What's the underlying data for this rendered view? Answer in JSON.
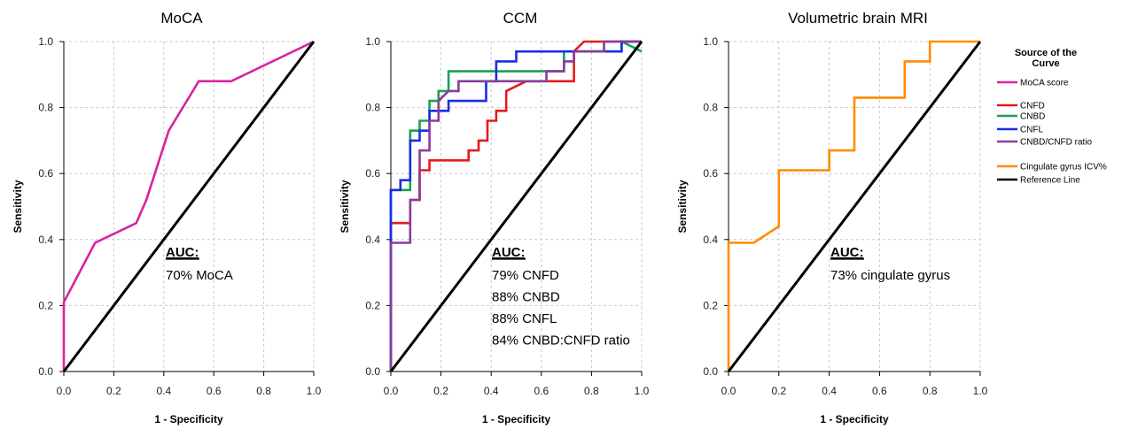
{
  "chart_data": [
    {
      "type": "line",
      "title": "MoCA",
      "xlabel": "1 - Specificity",
      "ylabel": "Sensitivity",
      "xlim": [
        0,
        1
      ],
      "ylim": [
        0,
        1
      ],
      "xticks": [
        "0.0",
        "0.2",
        "0.4",
        "0.6",
        "0.8",
        "1.0"
      ],
      "yticks": [
        "0.0",
        "0.2",
        "0.4",
        "0.6",
        "0.8",
        "1.0"
      ],
      "grid": true,
      "series": [
        {
          "name": "MoCA score",
          "color": "#d6249f",
          "points": [
            [
              0,
              0
            ],
            [
              0,
              0.21
            ],
            [
              0.125,
              0.39
            ],
            [
              0.29,
              0.45
            ],
            [
              0.33,
              0.52
            ],
            [
              0.42,
              0.73
            ],
            [
              0.54,
              0.88
            ],
            [
              0.67,
              0.88
            ],
            [
              1,
              1
            ]
          ]
        },
        {
          "name": "Reference Line",
          "color": "#000000",
          "points": [
            [
              0,
              0
            ],
            [
              1,
              1
            ]
          ]
        }
      ],
      "annotation": {
        "heading": "AUC:",
        "lines": [
          "70% MoCA"
        ]
      }
    },
    {
      "type": "line",
      "title": "CCM",
      "xlabel": "1 - Specificity",
      "ylabel": "Sensitivity",
      "xlim": [
        0,
        1
      ],
      "ylim": [
        0,
        1
      ],
      "xticks": [
        "0.0",
        "0.2",
        "0.4",
        "0.6",
        "0.8",
        "1.0"
      ],
      "yticks": [
        "0.0",
        "0.2",
        "0.4",
        "0.6",
        "0.8",
        "1.0"
      ],
      "grid": true,
      "series": [
        {
          "name": "CNFD",
          "color": "#e8191c",
          "points": [
            [
              0,
              0
            ],
            [
              0,
              0.45
            ],
            [
              0.077,
              0.45
            ],
            [
              0.077,
              0.52
            ],
            [
              0.115,
              0.52
            ],
            [
              0.115,
              0.61
            ],
            [
              0.154,
              0.61
            ],
            [
              0.154,
              0.64
            ],
            [
              0.31,
              0.64
            ],
            [
              0.31,
              0.67
            ],
            [
              0.35,
              0.67
            ],
            [
              0.35,
              0.7
            ],
            [
              0.385,
              0.7
            ],
            [
              0.385,
              0.76
            ],
            [
              0.42,
              0.76
            ],
            [
              0.42,
              0.79
            ],
            [
              0.46,
              0.79
            ],
            [
              0.46,
              0.85
            ],
            [
              0.54,
              0.88
            ],
            [
              0.73,
              0.88
            ],
            [
              0.73,
              0.97
            ],
            [
              0.77,
              1.0
            ],
            [
              1,
              1
            ]
          ]
        },
        {
          "name": "CNBD",
          "color": "#1aa052",
          "points": [
            [
              0,
              0
            ],
            [
              0,
              0.55
            ],
            [
              0.077,
              0.55
            ],
            [
              0.077,
              0.73
            ],
            [
              0.115,
              0.73
            ],
            [
              0.115,
              0.76
            ],
            [
              0.154,
              0.76
            ],
            [
              0.154,
              0.82
            ],
            [
              0.19,
              0.82
            ],
            [
              0.19,
              0.85
            ],
            [
              0.23,
              0.85
            ],
            [
              0.23,
              0.91
            ],
            [
              0.69,
              0.91
            ],
            [
              0.69,
              0.97
            ],
            [
              0.92,
              0.97
            ],
            [
              0.92,
              1.0
            ],
            [
              1,
              0.97
            ]
          ]
        },
        {
          "name": "CNFL",
          "color": "#1a2de6",
          "points": [
            [
              0,
              0
            ],
            [
              0,
              0.55
            ],
            [
              0.038,
              0.55
            ],
            [
              0.038,
              0.58
            ],
            [
              0.077,
              0.58
            ],
            [
              0.077,
              0.7
            ],
            [
              0.115,
              0.7
            ],
            [
              0.115,
              0.73
            ],
            [
              0.154,
              0.73
            ],
            [
              0.154,
              0.79
            ],
            [
              0.23,
              0.79
            ],
            [
              0.23,
              0.82
            ],
            [
              0.38,
              0.82
            ],
            [
              0.38,
              0.88
            ],
            [
              0.42,
              0.88
            ],
            [
              0.42,
              0.94
            ],
            [
              0.5,
              0.94
            ],
            [
              0.5,
              0.97
            ],
            [
              0.92,
              0.97
            ],
            [
              0.92,
              1.0
            ],
            [
              1,
              1
            ]
          ]
        },
        {
          "name": "CNBD/CNFD ratio",
          "color": "#8a3b9b",
          "points": [
            [
              0,
              0
            ],
            [
              0,
              0.39
            ],
            [
              0.077,
              0.39
            ],
            [
              0.077,
              0.52
            ],
            [
              0.115,
              0.52
            ],
            [
              0.115,
              0.67
            ],
            [
              0.154,
              0.67
            ],
            [
              0.154,
              0.76
            ],
            [
              0.19,
              0.76
            ],
            [
              0.19,
              0.82
            ],
            [
              0.23,
              0.85
            ],
            [
              0.27,
              0.85
            ],
            [
              0.27,
              0.88
            ],
            [
              0.62,
              0.88
            ],
            [
              0.62,
              0.91
            ],
            [
              0.69,
              0.91
            ],
            [
              0.69,
              0.94
            ],
            [
              0.73,
              0.94
            ],
            [
              0.73,
              0.97
            ],
            [
              0.85,
              0.97
            ],
            [
              0.85,
              1.0
            ],
            [
              1,
              1
            ]
          ]
        },
        {
          "name": "Reference Line",
          "color": "#000000",
          "points": [
            [
              0,
              0
            ],
            [
              1,
              1
            ]
          ]
        }
      ],
      "annotation": {
        "heading": "AUC:",
        "lines": [
          "79% CNFD",
          "88% CNBD",
          "88% CNFL",
          "84% CNBD:CNFD ratio"
        ]
      }
    },
    {
      "type": "line",
      "title": "Volumetric brain MRI",
      "xlabel": "1 - Specificity",
      "ylabel": "Sensitivity",
      "xlim": [
        0,
        1
      ],
      "ylim": [
        0,
        1
      ],
      "xticks": [
        "0.0",
        "0.2",
        "0.4",
        "0.6",
        "0.8",
        "1.0"
      ],
      "yticks": [
        "0.0",
        "0.2",
        "0.4",
        "0.6",
        "0.8",
        "1.0"
      ],
      "grid": true,
      "series": [
        {
          "name": "Cingulate gyrus ICV%",
          "color": "#ff8c00",
          "points": [
            [
              0,
              0
            ],
            [
              0,
              0.39
            ],
            [
              0.1,
              0.39
            ],
            [
              0.2,
              0.44
            ],
            [
              0.2,
              0.61
            ],
            [
              0.4,
              0.61
            ],
            [
              0.4,
              0.67
            ],
            [
              0.5,
              0.67
            ],
            [
              0.5,
              0.83
            ],
            [
              0.7,
              0.83
            ],
            [
              0.7,
              0.94
            ],
            [
              0.8,
              0.94
            ],
            [
              0.8,
              1.0
            ],
            [
              1,
              1
            ]
          ]
        },
        {
          "name": "Reference Line",
          "color": "#000000",
          "points": [
            [
              0,
              0
            ],
            [
              1,
              1
            ]
          ]
        }
      ],
      "annotation": {
        "heading": "AUC:",
        "lines": [
          "73% cingulate gyrus"
        ]
      }
    }
  ],
  "legend": {
    "title_lines": [
      "Source of the",
      "Curve"
    ],
    "items": [
      {
        "label": "MoCA score",
        "color": "#d6249f"
      },
      {
        "label": "CNFD",
        "color": "#e8191c"
      },
      {
        "label": "CNBD",
        "color": "#1aa052"
      },
      {
        "label": "CNFL",
        "color": "#1a2de6"
      },
      {
        "label": "CNBD/CNFD ratio",
        "color": "#8a3b9b"
      },
      {
        "label": "Cingulate gyrus ICV%",
        "color": "#ff8c00"
      },
      {
        "label": "Reference Line",
        "color": "#000000"
      }
    ]
  }
}
